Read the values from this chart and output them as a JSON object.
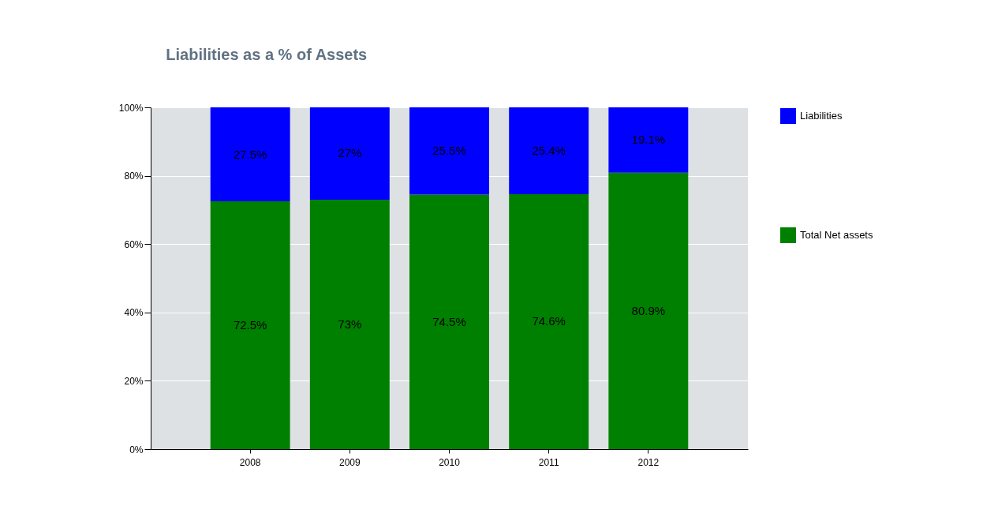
{
  "chart_data": {
    "type": "bar",
    "title": "Liabilities as a % of Assets",
    "categories": [
      "2008",
      "2009",
      "2010",
      "2011",
      "2012"
    ],
    "stacked": true,
    "series": [
      {
        "name": "Total Net assets",
        "color": "#008000",
        "values": [
          72.5,
          73,
          74.5,
          74.6,
          80.9
        ],
        "value_labels": [
          "72.5%",
          "73%",
          "74.5%",
          "74.6%",
          "80.9%"
        ]
      },
      {
        "name": "Liabilities",
        "color": "#0000ff",
        "values": [
          27.5,
          27,
          25.5,
          25.4,
          19.1
        ],
        "value_labels": [
          "27.5%",
          "27%",
          "25.5%",
          "25.4%",
          "19.1%"
        ]
      }
    ],
    "ylim": [
      0,
      100
    ],
    "yticks": [
      {
        "value": 0,
        "label": "0%"
      },
      {
        "value": 20,
        "label": "20%"
      },
      {
        "value": 40,
        "label": "40%"
      },
      {
        "value": 60,
        "label": "60%"
      },
      {
        "value": 80,
        "label": "80%"
      },
      {
        "value": 100,
        "label": "100%"
      }
    ],
    "grid": "y",
    "legend": "right"
  }
}
